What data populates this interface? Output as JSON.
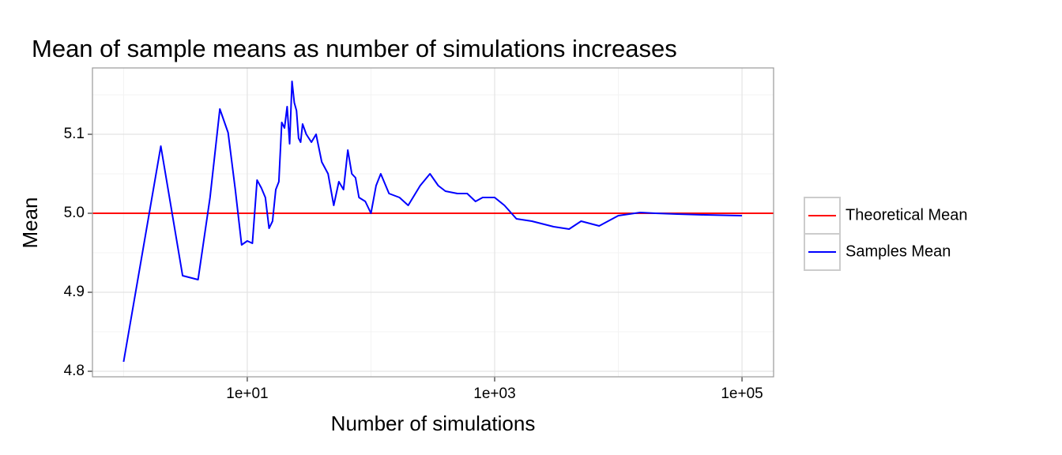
{
  "chart_data": {
    "type": "line",
    "title": "Mean of sample means as number of simulations increases",
    "x_label": "Number of simulations",
    "y_label": "Mean",
    "x_scale": "log",
    "grid": true,
    "legend_position": "right",
    "xlim": [
      0.56,
      180000
    ],
    "ylim": [
      4.793,
      5.184
    ],
    "xticks": [
      {
        "value": 10,
        "label": "1e+01"
      },
      {
        "value": 1000,
        "label": "1e+03"
      },
      {
        "value": 100000,
        "label": "1e+05"
      }
    ],
    "yticks": [
      4.8,
      4.9,
      {
        "value": 5,
        "label": "5.0"
      },
      5.1
    ],
    "series": [
      {
        "name": "Theoretical Mean",
        "color": "#ff0000",
        "yintercept": 5
      },
      {
        "name": "Samples Mean",
        "color": "#0000ff",
        "x": [
          1,
          2,
          3,
          4,
          5,
          6,
          7,
          8,
          9,
          10,
          11,
          12,
          13,
          14,
          15,
          16,
          17,
          18,
          19,
          20,
          21,
          22,
          23,
          24,
          25,
          26,
          27,
          28,
          30,
          33,
          36,
          40,
          45,
          50,
          55,
          60,
          65,
          70,
          75,
          80,
          90,
          100,
          110,
          120,
          140,
          170,
          200,
          250,
          300,
          350,
          400,
          500,
          600,
          700,
          800,
          1000,
          1200,
          1500,
          2000,
          3000,
          4000,
          5000,
          7000,
          10000,
          15000,
          20000,
          30000,
          50000,
          100000
        ],
        "values": [
          4.812,
          5.085,
          4.921,
          4.916,
          5.02,
          5.132,
          5.102,
          5.03,
          4.96,
          4.965,
          4.962,
          5.042,
          5.032,
          5.02,
          4.981,
          4.99,
          5.03,
          5.04,
          5.115,
          5.108,
          5.135,
          5.088,
          5.167,
          5.14,
          5.13,
          5.095,
          5.09,
          5.113,
          5.1,
          5.09,
          5.1,
          5.065,
          5.05,
          5.01,
          5.04,
          5.03,
          5.08,
          5.05,
          5.045,
          5.02,
          5.015,
          5.0,
          5.035,
          5.05,
          5.025,
          5.02,
          5.01,
          5.035,
          5.05,
          5.035,
          5.028,
          5.025,
          5.025,
          5.015,
          5.02,
          5.02,
          5.01,
          4.993,
          4.99,
          4.983,
          4.98,
          4.99,
          4.984,
          4.997,
          5.001,
          5.0,
          4.999,
          4.998,
          4.997
        ]
      }
    ]
  }
}
